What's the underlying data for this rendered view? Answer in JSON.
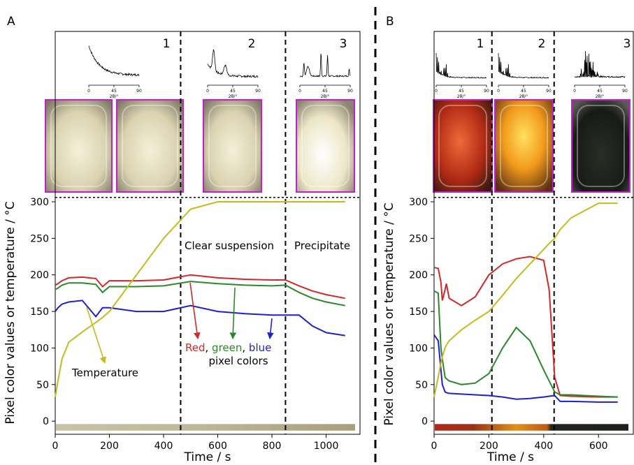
{
  "chart_data": [
    {
      "type": "line",
      "panel": "A",
      "xlabel": "Time / s",
      "ylabel": "Pixel color values or temperature / °C",
      "xlim": [
        0,
        1125
      ],
      "ylim": [
        -18,
        533
      ],
      "xticks": [
        0,
        200,
        400,
        600,
        800,
        1000
      ],
      "yticks": [
        0,
        50,
        100,
        150,
        200,
        250,
        300
      ],
      "x": [
        0,
        10,
        25,
        50,
        100,
        150,
        175,
        200,
        300,
        400,
        500,
        600,
        700,
        800,
        850,
        900,
        950,
        1000,
        1070
      ],
      "series": [
        {
          "color": "#d62728",
          "values": [
            186,
            188,
            192,
            196,
            197,
            195,
            184,
            192,
            192,
            193,
            200,
            196,
            194,
            193,
            193,
            185,
            178,
            173,
            168
          ]
        },
        {
          "color": "#2a8a2a",
          "values": [
            180,
            182,
            186,
            189,
            189,
            187,
            176,
            184,
            184,
            185,
            191,
            188,
            186,
            185,
            186,
            176,
            168,
            163,
            158
          ]
        },
        {
          "color": "#1f1fcf",
          "values": [
            150,
            155,
            160,
            163,
            165,
            143,
            155,
            155,
            150,
            150,
            158,
            150,
            147,
            145,
            145,
            145,
            130,
            121,
            117
          ]
        },
        {
          "color": "#c2bd1c",
          "values": [
            33,
            55,
            85,
            108,
            122,
            135,
            142,
            150,
            200,
            250,
            290,
            300,
            300,
            300,
            300,
            300,
            300,
            300,
            300
          ]
        }
      ],
      "stage_boundaries": [
        463,
        850
      ],
      "stage_labels": [
        "1",
        "2",
        "3"
      ],
      "divider": 306,
      "annotations": [
        "Clear suspension",
        "Precipitate",
        "pixel colors",
        "Temperature"
      ],
      "rgb_note": [
        "Red",
        ", ",
        "green",
        ", ",
        "blue"
      ],
      "xrd": {
        "ticks": [
          0,
          45,
          90
        ],
        "label": "2θ/°"
      }
    },
    {
      "type": "line",
      "panel": "B",
      "xlabel": "Time / s",
      "ylabel": "Pixel color values or temperature / °C",
      "xlim": [
        0,
        727
      ],
      "ylim": [
        -18,
        533
      ],
      "xticks": [
        0,
        200,
        400,
        600
      ],
      "yticks": [
        0,
        50,
        100,
        150,
        200,
        250,
        300
      ],
      "x": [
        0,
        15,
        25,
        30,
        40,
        45,
        55,
        100,
        150,
        200,
        250,
        300,
        350,
        400,
        420,
        440,
        460,
        500,
        600,
        670
      ],
      "series": [
        {
          "color": "#d62728",
          "values": [
            210,
            209,
            190,
            165,
            180,
            188,
            168,
            158,
            170,
            200,
            215,
            222,
            225,
            220,
            180,
            60,
            35,
            34,
            33,
            33
          ]
        },
        {
          "color": "#2a8a2a",
          "values": [
            178,
            175,
            100,
            85,
            60,
            58,
            55,
            50,
            52,
            65,
            100,
            128,
            110,
            70,
            55,
            40,
            36,
            36,
            34,
            33
          ]
        },
        {
          "color": "#1f1fcf",
          "values": [
            118,
            110,
            70,
            50,
            40,
            39,
            38,
            37,
            36,
            35,
            33,
            30,
            31,
            33,
            34,
            35,
            27,
            27,
            26,
            26
          ]
        },
        {
          "color": "#c2bd1c",
          "values": [
            33,
            60,
            80,
            88,
            100,
            104,
            110,
            125,
            138,
            150,
            172,
            195,
            215,
            235,
            243,
            250,
            262,
            278,
            298,
            298
          ]
        }
      ],
      "stage_boundaries": [
        211,
        438
      ],
      "stage_labels": [
        "1",
        "2",
        "3"
      ],
      "divider": 306,
      "xrd": {
        "ticks": [
          0,
          45,
          90
        ],
        "label": "2θ/°"
      }
    }
  ]
}
